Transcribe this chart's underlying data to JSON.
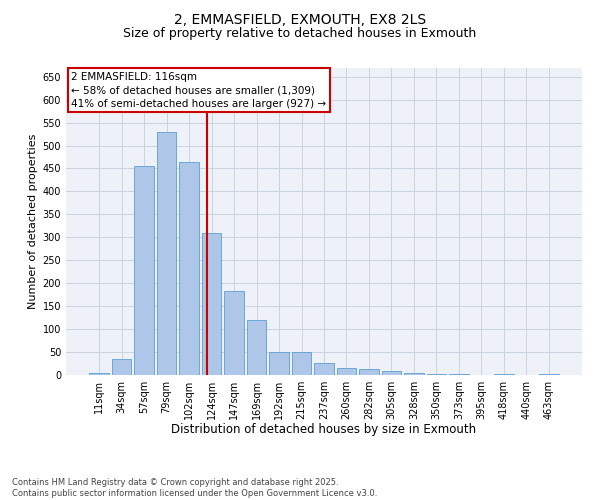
{
  "title1": "2, EMMASFIELD, EXMOUTH, EX8 2LS",
  "title2": "Size of property relative to detached houses in Exmouth",
  "xlabel": "Distribution of detached houses by size in Exmouth",
  "ylabel": "Number of detached properties",
  "categories": [
    "11sqm",
    "34sqm",
    "57sqm",
    "79sqm",
    "102sqm",
    "124sqm",
    "147sqm",
    "169sqm",
    "192sqm",
    "215sqm",
    "237sqm",
    "260sqm",
    "282sqm",
    "305sqm",
    "328sqm",
    "350sqm",
    "373sqm",
    "395sqm",
    "418sqm",
    "440sqm",
    "463sqm"
  ],
  "values": [
    5,
    35,
    455,
    530,
    465,
    310,
    183,
    120,
    50,
    50,
    27,
    15,
    12,
    8,
    5,
    2,
    2,
    0,
    2,
    0,
    3
  ],
  "bar_color": "#aec6e8",
  "bar_edge_color": "#5a9fd4",
  "vline_x": 4.78,
  "vline_color": "#cc0000",
  "annotation_text": "2 EMMASFIELD: 116sqm\n← 58% of detached houses are smaller (1,309)\n41% of semi-detached houses are larger (927) →",
  "annotation_box_color": "#ffffff",
  "annotation_box_edge": "#cc0000",
  "ylim": [
    0,
    670
  ],
  "yticks": [
    0,
    50,
    100,
    150,
    200,
    250,
    300,
    350,
    400,
    450,
    500,
    550,
    600,
    650
  ],
  "grid_color": "#c8d4e0",
  "background_color": "#eef2f8",
  "footer": "Contains HM Land Registry data © Crown copyright and database right 2025.\nContains public sector information licensed under the Open Government Licence v3.0.",
  "title1_fontsize": 10,
  "title2_fontsize": 9,
  "xlabel_fontsize": 8.5,
  "ylabel_fontsize": 8,
  "tick_fontsize": 7,
  "annotation_fontsize": 7.5,
  "footer_fontsize": 6
}
